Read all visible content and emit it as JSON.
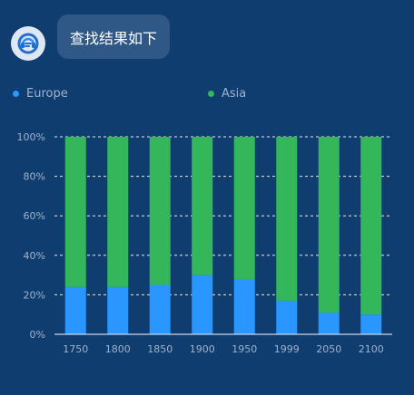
{
  "message": {
    "text": "查找结果如下"
  },
  "avatar": {
    "icon": "chatbot-headset-icon"
  },
  "chart_data": {
    "type": "bar",
    "stacked": true,
    "categories": [
      "1750",
      "1800",
      "1850",
      "1900",
      "1950",
      "1999",
      "2050",
      "2100"
    ],
    "series": [
      {
        "name": "Europe",
        "color": "#2997ff",
        "values": [
          24,
          24,
          25,
          30,
          28,
          17,
          11,
          10
        ]
      },
      {
        "name": "Asia",
        "color": "#34b65a",
        "values": [
          76,
          76,
          75,
          70,
          72,
          83,
          89,
          90
        ]
      }
    ],
    "yticks": [
      "0%",
      "20%",
      "40%",
      "60%",
      "80%",
      "100%"
    ],
    "ylim": [
      0,
      100
    ],
    "grid": true,
    "legend_position": "top"
  }
}
